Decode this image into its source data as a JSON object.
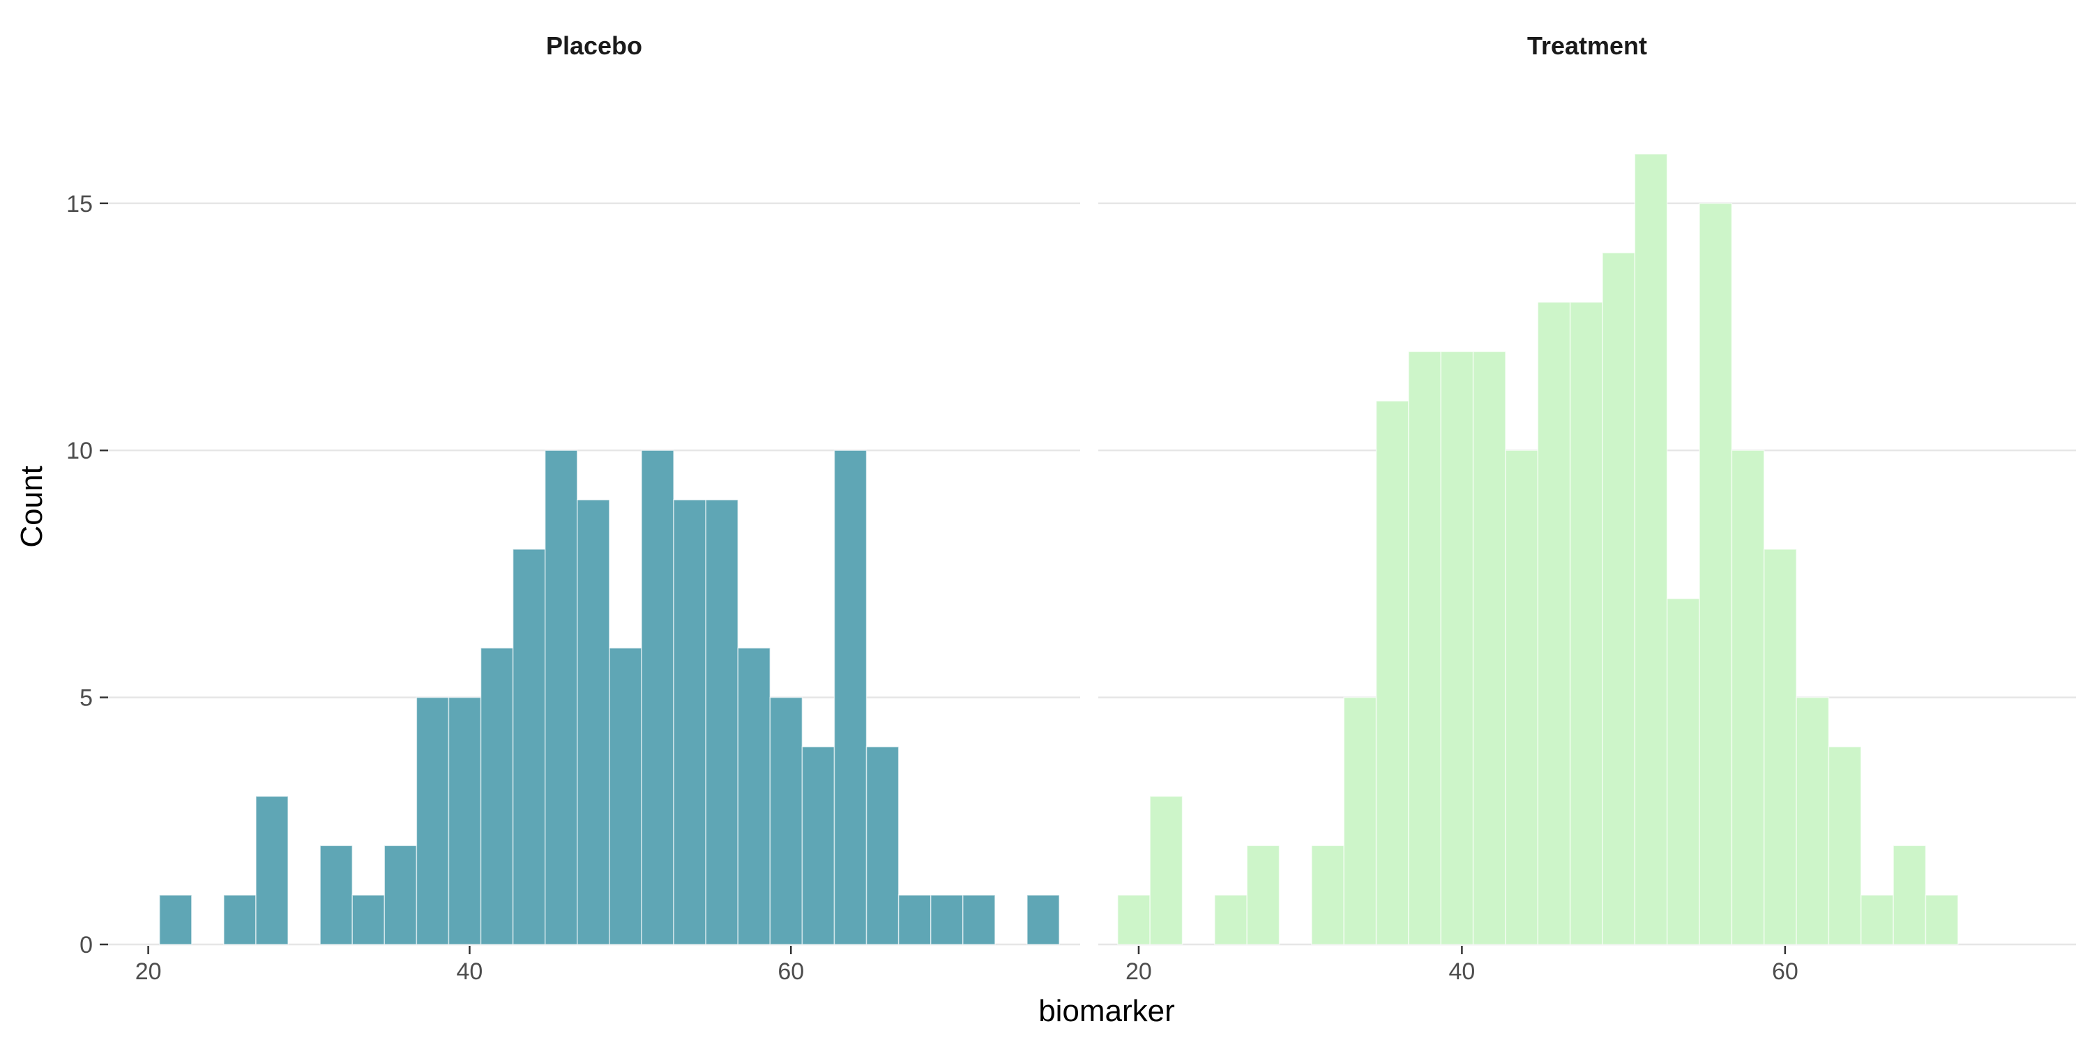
{
  "chart_data": {
    "type": "bar",
    "subtype": "faceted-histogram",
    "xlabel": "biomarker",
    "ylabel": "Count",
    "xlim": [
      17.5,
      78
    ],
    "ylim": [
      0,
      17
    ],
    "x_ticks": [
      20,
      40,
      60
    ],
    "y_ticks": [
      0,
      5,
      10,
      15
    ],
    "bin_width": 2.0,
    "grid": "horizontal major lines",
    "panels": [
      {
        "title": "Placebo",
        "color": "#5fa6b5",
        "bins": [
          {
            "x": 21.7,
            "count": 1
          },
          {
            "x": 25.7,
            "count": 1
          },
          {
            "x": 27.7,
            "count": 3
          },
          {
            "x": 31.7,
            "count": 2
          },
          {
            "x": 33.7,
            "count": 1
          },
          {
            "x": 35.7,
            "count": 2
          },
          {
            "x": 37.7,
            "count": 5
          },
          {
            "x": 39.7,
            "count": 5
          },
          {
            "x": 41.7,
            "count": 6
          },
          {
            "x": 43.7,
            "count": 8
          },
          {
            "x": 45.7,
            "count": 10
          },
          {
            "x": 47.7,
            "count": 9
          },
          {
            "x": 49.7,
            "count": 6
          },
          {
            "x": 51.7,
            "count": 10
          },
          {
            "x": 53.7,
            "count": 9
          },
          {
            "x": 55.7,
            "count": 9
          },
          {
            "x": 57.7,
            "count": 6
          },
          {
            "x": 59.7,
            "count": 5
          },
          {
            "x": 61.7,
            "count": 4
          },
          {
            "x": 63.7,
            "count": 10
          },
          {
            "x": 65.7,
            "count": 4
          },
          {
            "x": 67.7,
            "count": 1
          },
          {
            "x": 69.7,
            "count": 1
          },
          {
            "x": 71.7,
            "count": 1
          },
          {
            "x": 75.7,
            "count": 1
          }
        ]
      },
      {
        "title": "Treatment",
        "color": "#cdf5c9",
        "bins": [
          {
            "x": 19.7,
            "count": 1
          },
          {
            "x": 21.7,
            "count": 3
          },
          {
            "x": 25.7,
            "count": 1
          },
          {
            "x": 27.7,
            "count": 2
          },
          {
            "x": 31.7,
            "count": 2
          },
          {
            "x": 33.7,
            "count": 5
          },
          {
            "x": 35.7,
            "count": 11
          },
          {
            "x": 37.7,
            "count": 12
          },
          {
            "x": 39.7,
            "count": 12
          },
          {
            "x": 41.7,
            "count": 12
          },
          {
            "x": 43.7,
            "count": 10
          },
          {
            "x": 45.7,
            "count": 13
          },
          {
            "x": 47.7,
            "count": 13
          },
          {
            "x": 49.7,
            "count": 14
          },
          {
            "x": 51.7,
            "count": 16
          },
          {
            "x": 53.7,
            "count": 7
          },
          {
            "x": 55.7,
            "count": 15
          },
          {
            "x": 57.7,
            "count": 10
          },
          {
            "x": 59.7,
            "count": 8
          },
          {
            "x": 61.7,
            "count": 5
          },
          {
            "x": 63.7,
            "count": 4
          },
          {
            "x": 65.7,
            "count": 1
          },
          {
            "x": 67.7,
            "count": 2
          },
          {
            "x": 69.7,
            "count": 1
          }
        ]
      }
    ]
  }
}
